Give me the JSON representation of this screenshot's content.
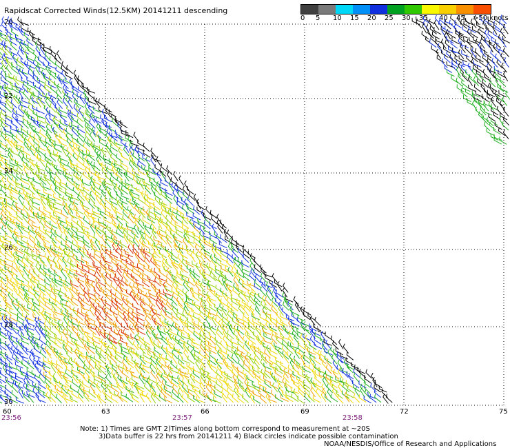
{
  "title": "Rapidscat Corrected Winds(12.5KM) 20141211 descending",
  "legend": {
    "colors": [
      "#404040",
      "#7a7a7a",
      "#00d8f8",
      "#0090f8",
      "#1030e0",
      "#00a020",
      "#30c800",
      "#f8f800",
      "#f8d000",
      "#f89000",
      "#f85000",
      "#e01010",
      "#c01040",
      "#804020",
      "#a05838",
      "#f000f8",
      "#c000e0",
      "#8000c0",
      "#400080"
    ],
    "labels": [
      "0",
      "5",
      "10",
      "15",
      "20",
      "25",
      "30",
      "35",
      "40",
      "45",
      ">50 knots"
    ]
  },
  "axes": {
    "lon_ticks": [
      "60",
      "63",
      "66",
      "69",
      "72",
      "75"
    ],
    "lat_ticks": [
      "20",
      "22",
      "24",
      "26",
      "28",
      "30"
    ]
  },
  "times": [
    "23:56",
    "23:57",
    "23:58"
  ],
  "notes": {
    "line1": "Note: 1) Times are GMT 2)Times along bottom correspond to measurement at ~20S",
    "line2": "3)Data buffer is 22 hrs from 20141211 4) Black circles indicate possible contamination",
    "credit": "NOAA/NESDIS/Office of Research and Applications"
  },
  "wind_palette": {
    "blue": "#1030e0",
    "green": "#20b020",
    "lightgreen": "#90d000",
    "yellow": "#f0d800",
    "orange": "#f0a000",
    "red": "#d83000",
    "black": "#000000"
  }
}
